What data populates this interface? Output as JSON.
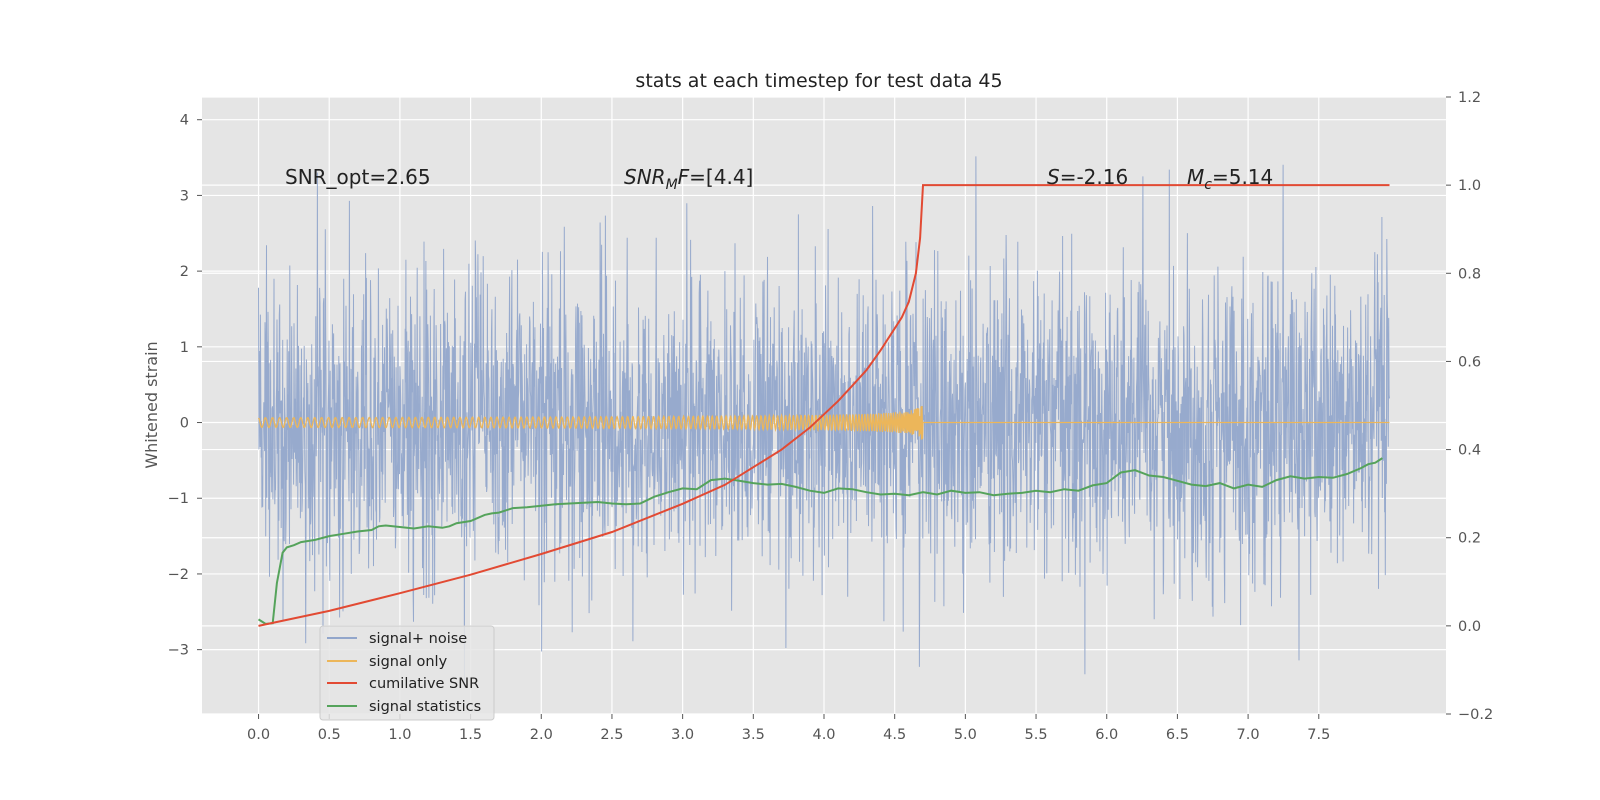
{
  "chart_data": {
    "type": "line",
    "title": "stats at each timestep for test data 45",
    "xlabel": "",
    "ylabel": "Whitened strain",
    "y2label": "",
    "xlim": [
      -0.4,
      8.4
    ],
    "ylim": [
      -3.85,
      4.3
    ],
    "y2lim": [
      -0.2,
      1.2
    ],
    "xticks": [
      "0.0",
      "0.5",
      "1.0",
      "1.5",
      "2.0",
      "2.5",
      "3.0",
      "3.5",
      "4.0",
      "4.5",
      "5.0",
      "5.5",
      "6.0",
      "6.5",
      "7.0",
      "7.5"
    ],
    "yticks": [
      -3,
      -2,
      -1,
      0,
      1,
      2,
      3,
      4
    ],
    "y2ticks": [
      "−0.2",
      "0.0",
      "0.2",
      "0.4",
      "0.6",
      "0.8",
      "1.0",
      "1.2"
    ],
    "grid": true,
    "legend_position": "lower-left",
    "annotations": {
      "snr_opt": "SNR_opt=2.65",
      "snr_mf_main": "SNR",
      "snr_mf_sub": "M",
      "snr_mf_rest": "F=[4.4]",
      "s_value_main": "S",
      "s_value_rest": "=-2.16",
      "mc_main": "M",
      "mc_sub": "c",
      "mc_rest": "=5.14"
    },
    "series": [
      {
        "name": "signal+ noise",
        "color": "#92a6cb",
        "axis": "left",
        "description_values": {
          "t_start": 0.0,
          "t_end": 8.0,
          "band_mean": 0.0,
          "band_sigma": 1.0
        }
      },
      {
        "name": "signal only",
        "color": "#ecb65a",
        "axis": "left",
        "chirp": {
          "t_start": 0.0,
          "t_merge": 4.7,
          "t_end": 8.0,
          "amp_at_merge": 0.25
        }
      },
      {
        "name": "cumilative SNR",
        "color": "#e24a33",
        "axis": "right",
        "x": [
          0.0,
          0.5,
          1.0,
          1.5,
          2.0,
          2.5,
          3.0,
          3.3,
          3.5,
          3.7,
          3.9,
          4.0,
          4.1,
          4.2,
          4.3,
          4.4,
          4.5,
          4.55,
          4.6,
          4.65,
          4.68,
          4.7,
          5.0,
          6.0,
          7.0,
          8.0
        ],
        "values": [
          0.0,
          0.034,
          0.074,
          0.116,
          0.163,
          0.213,
          0.277,
          0.32,
          0.36,
          0.4,
          0.45,
          0.48,
          0.51,
          0.545,
          0.58,
          0.625,
          0.675,
          0.7,
          0.735,
          0.8,
          0.88,
          1.0,
          1.0,
          1.0,
          1.0,
          1.0
        ]
      },
      {
        "name": "signal statistics",
        "color": "#55a35b",
        "axis": "left",
        "x": [
          0.0,
          0.05,
          0.1,
          0.13,
          0.17,
          0.2,
          0.25,
          0.3,
          0.4,
          0.5,
          0.6,
          0.7,
          0.8,
          0.85,
          0.9,
          1.0,
          1.1,
          1.2,
          1.3,
          1.35,
          1.4,
          1.5,
          1.6,
          1.65,
          1.7,
          1.8,
          1.9,
          2.0,
          2.1,
          2.2,
          2.3,
          2.4,
          2.5,
          2.6,
          2.7,
          2.8,
          2.9,
          3.0,
          3.1,
          3.2,
          3.3,
          3.4,
          3.5,
          3.6,
          3.7,
          3.8,
          3.9,
          4.0,
          4.1,
          4.2,
          4.3,
          4.4,
          4.5,
          4.6,
          4.7,
          4.8,
          4.9,
          5.0,
          5.1,
          5.2,
          5.3,
          5.4,
          5.5,
          5.6,
          5.7,
          5.8,
          5.9,
          6.0,
          6.1,
          6.2,
          6.3,
          6.4,
          6.5,
          6.6,
          6.7,
          6.8,
          6.9,
          7.0,
          7.1,
          7.2,
          7.3,
          7.4,
          7.5,
          7.6,
          7.7,
          7.8,
          7.85,
          7.9,
          7.95
        ],
        "values": [
          -2.6,
          -2.66,
          -2.65,
          -2.12,
          -1.72,
          -1.65,
          -1.62,
          -1.58,
          -1.55,
          -1.5,
          -1.47,
          -1.44,
          -1.42,
          -1.37,
          -1.36,
          -1.38,
          -1.4,
          -1.37,
          -1.39,
          -1.37,
          -1.33,
          -1.3,
          -1.22,
          -1.2,
          -1.19,
          -1.13,
          -1.12,
          -1.1,
          -1.08,
          -1.07,
          -1.06,
          -1.05,
          -1.07,
          -1.08,
          -1.07,
          -0.98,
          -0.92,
          -0.87,
          -0.88,
          -0.76,
          -0.74,
          -0.77,
          -0.8,
          -0.82,
          -0.81,
          -0.85,
          -0.9,
          -0.93,
          -0.87,
          -0.88,
          -0.92,
          -0.95,
          -0.94,
          -0.96,
          -0.92,
          -0.95,
          -0.9,
          -0.93,
          -0.92,
          -0.96,
          -0.94,
          -0.93,
          -0.9,
          -0.92,
          -0.88,
          -0.9,
          -0.83,
          -0.8,
          -0.66,
          -0.63,
          -0.7,
          -0.72,
          -0.77,
          -0.82,
          -0.84,
          -0.8,
          -0.87,
          -0.82,
          -0.85,
          -0.76,
          -0.71,
          -0.74,
          -0.72,
          -0.73,
          -0.68,
          -0.6,
          -0.55,
          -0.53,
          -0.47
        ]
      }
    ]
  }
}
